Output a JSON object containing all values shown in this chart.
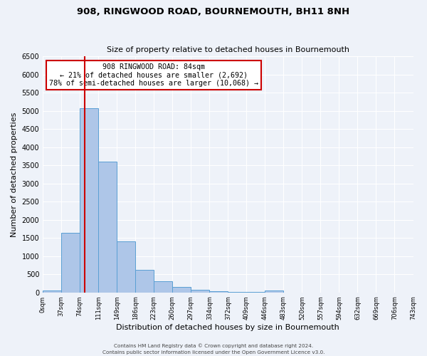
{
  "title": "908, RINGWOOD ROAD, BOURNEMOUTH, BH11 8NH",
  "subtitle": "Size of property relative to detached houses in Bournemouth",
  "xlabel": "Distribution of detached houses by size in Bournemouth",
  "ylabel": "Number of detached properties",
  "bin_labels": [
    "0sqm",
    "37sqm",
    "74sqm",
    "111sqm",
    "149sqm",
    "186sqm",
    "223sqm",
    "260sqm",
    "297sqm",
    "334sqm",
    "372sqm",
    "409sqm",
    "446sqm",
    "483sqm",
    "520sqm",
    "557sqm",
    "594sqm",
    "632sqm",
    "669sqm",
    "706sqm",
    "743sqm"
  ],
  "bar_values": [
    50,
    1650,
    5080,
    3600,
    1400,
    620,
    300,
    155,
    75,
    30,
    10,
    5,
    50,
    0,
    0,
    0,
    0,
    0,
    0,
    0
  ],
  "bar_color": "#aec6e8",
  "bar_edge_color": "#5a9fd4",
  "property_line_x": 84,
  "property_line_color": "#cc0000",
  "annotation_title": "908 RINGWOOD ROAD: 84sqm",
  "annotation_line1": "← 21% of detached houses are smaller (2,692)",
  "annotation_line2": "78% of semi-detached houses are larger (10,068) →",
  "annotation_box_color": "#ffffff",
  "annotation_box_edge": "#cc0000",
  "ylim": [
    0,
    6500
  ],
  "yticks": [
    0,
    500,
    1000,
    1500,
    2000,
    2500,
    3000,
    3500,
    4000,
    4500,
    5000,
    5500,
    6000,
    6500
  ],
  "footer_line1": "Contains HM Land Registry data © Crown copyright and database right 2024.",
  "footer_line2": "Contains public sector information licensed under the Open Government Licence v3.0.",
  "background_color": "#eef2f9",
  "grid_color": "#ffffff"
}
